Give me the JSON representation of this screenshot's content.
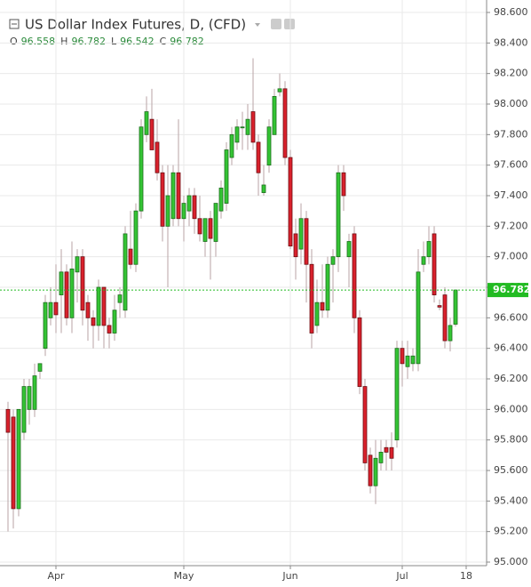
{
  "chart_data": {
    "type": "candlestick",
    "title": "US Dollar Index Futures, D, (CFD)",
    "ohlc_labels": [
      "O",
      "H",
      "L",
      "C"
    ],
    "ohlc_values": [
      96.558,
      96.782,
      96.542,
      96.782
    ],
    "last_price": 96.782,
    "up_color": "#34c434",
    "down_color": "#d9212c",
    "wick_color": "#b8a3a6",
    "last_price_color": "#22bb22",
    "grid": true,
    "ylim": [
      95.0,
      98.6
    ],
    "yticks": [
      {
        "value": 95.0,
        "label": "95.000"
      },
      {
        "value": 95.2,
        "label": "95.200"
      },
      {
        "value": 95.4,
        "label": "95.400"
      },
      {
        "value": 95.6,
        "label": "95.600"
      },
      {
        "value": 95.8,
        "label": "95.800"
      },
      {
        "value": 96.0,
        "label": "96.000"
      },
      {
        "value": 96.2,
        "label": "96.200"
      },
      {
        "value": 96.4,
        "label": "96.400"
      },
      {
        "value": 96.6,
        "label": "96.600"
      },
      {
        "value": 96.8,
        "label": "96.800"
      },
      {
        "value": 97.0,
        "label": "97.000"
      },
      {
        "value": 97.2,
        "label": "97.200"
      },
      {
        "value": 97.4,
        "label": "97.400"
      },
      {
        "value": 97.6,
        "label": "97.600"
      },
      {
        "value": 97.8,
        "label": "97.800"
      },
      {
        "value": 98.0,
        "label": "98.000"
      },
      {
        "value": 98.2,
        "label": "98.200"
      },
      {
        "value": 98.4,
        "label": "98.400"
      },
      {
        "value": 98.6,
        "label": "98.600"
      }
    ],
    "categories": [
      null,
      null,
      null,
      null,
      null,
      null,
      null,
      null,
      null,
      "Apr",
      null,
      null,
      null,
      null,
      null,
      null,
      null,
      null,
      null,
      null,
      null,
      null,
      null,
      null,
      null,
      null,
      null,
      null,
      null,
      null,
      null,
      null,
      null,
      "May",
      null,
      null,
      null,
      null,
      null,
      null,
      null,
      null,
      null,
      null,
      null,
      null,
      null,
      null,
      null,
      null,
      null,
      null,
      null,
      "Jun",
      null,
      null,
      null,
      null,
      null,
      null,
      null,
      null,
      null,
      null,
      null,
      null,
      null,
      null,
      null,
      null,
      null,
      null,
      null,
      null,
      "Jul",
      null,
      null,
      null,
      null,
      null,
      null,
      null,
      null,
      null,
      null,
      null,
      "18"
    ],
    "open": [
      96.0,
      95.95,
      95.35,
      95.85,
      96.0,
      96.0,
      96.25,
      96.4,
      96.6,
      96.7,
      96.75,
      96.9,
      96.6,
      96.9,
      97.0,
      96.7,
      96.6,
      96.55,
      96.8,
      96.55,
      96.5,
      96.7,
      96.65,
      97.05,
      96.95,
      97.3,
      97.8,
      97.9,
      97.75,
      97.55,
      97.2,
      97.25,
      97.55,
      97.25,
      97.3,
      97.4,
      97.25,
      97.1,
      97.25,
      97.1,
      97.3,
      97.35,
      97.65,
      97.75,
      97.85,
      97.8,
      97.95,
      97.75,
      97.42,
      97.6,
      97.8,
      98.08,
      98.1,
      97.65,
      97.15,
      97.05,
      97.25,
      96.95,
      96.55,
      96.7,
      96.65,
      96.95,
      97.0,
      97.55,
      97.0,
      97.15,
      96.6,
      96.15,
      95.7,
      95.5,
      95.65,
      95.75,
      95.75,
      95.8,
      96.4,
      96.28,
      96.3,
      96.3,
      96.95,
      97.0,
      97.15,
      96.68,
      96.75,
      96.45,
      96.558,
      null,
      null
    ],
    "high": [
      96.05,
      96.0,
      96.0,
      96.2,
      96.2,
      96.3,
      96.3,
      96.75,
      96.8,
      96.95,
      97.05,
      96.95,
      97.1,
      97.05,
      97.05,
      96.75,
      96.65,
      96.85,
      96.8,
      96.6,
      96.75,
      96.8,
      97.2,
      97.3,
      97.35,
      97.9,
      98.05,
      98.1,
      97.9,
      97.6,
      97.6,
      97.6,
      97.9,
      97.4,
      97.45,
      97.45,
      97.4,
      97.25,
      97.3,
      97.35,
      97.5,
      97.75,
      97.85,
      97.9,
      97.95,
      98.0,
      98.3,
      97.8,
      97.6,
      97.9,
      98.1,
      98.2,
      98.15,
      97.7,
      97.25,
      97.35,
      97.3,
      97.05,
      96.85,
      96.95,
      97.0,
      97.05,
      97.6,
      97.6,
      97.15,
      97.2,
      96.65,
      96.2,
      95.75,
      95.8,
      95.8,
      95.8,
      95.85,
      96.45,
      96.45,
      96.45,
      96.4,
      97.05,
      97.1,
      97.2,
      97.2,
      96.72,
      96.8,
      96.6,
      96.782,
      null,
      null
    ],
    "low": [
      95.2,
      95.22,
      95.3,
      95.8,
      95.9,
      95.95,
      96.2,
      96.35,
      96.55,
      96.5,
      96.5,
      96.55,
      96.5,
      96.7,
      96.55,
      96.45,
      96.4,
      96.45,
      96.4,
      96.4,
      96.45,
      96.6,
      96.6,
      96.92,
      96.9,
      97.25,
      97.75,
      97.7,
      97.5,
      97.1,
      96.8,
      97.2,
      97.2,
      97.1,
      97.2,
      97.15,
      97.1,
      97.0,
      96.85,
      97.0,
      97.25,
      97.3,
      97.6,
      97.7,
      97.7,
      97.7,
      97.7,
      97.4,
      97.4,
      97.55,
      97.8,
      98.05,
      97.6,
      97.05,
      96.85,
      96.95,
      96.7,
      96.4,
      96.5,
      96.6,
      96.6,
      96.7,
      96.9,
      97.3,
      96.8,
      96.5,
      96.1,
      95.6,
      95.45,
      95.38,
      95.6,
      95.6,
      95.6,
      95.75,
      96.15,
      96.2,
      96.25,
      96.25,
      96.9,
      96.95,
      96.7,
      96.65,
      96.4,
      96.38,
      96.542,
      null,
      null
    ],
    "close": [
      95.85,
      95.35,
      96.0,
      96.15,
      96.15,
      96.22,
      96.3,
      96.7,
      96.7,
      96.62,
      96.9,
      96.6,
      96.92,
      97.0,
      96.65,
      96.6,
      96.55,
      96.8,
      96.55,
      96.5,
      96.65,
      96.75,
      97.15,
      96.95,
      97.3,
      97.85,
      97.95,
      97.7,
      97.55,
      97.2,
      97.4,
      97.55,
      97.25,
      97.35,
      97.4,
      97.25,
      97.15,
      97.25,
      97.12,
      97.35,
      97.45,
      97.7,
      97.8,
      97.85,
      97.85,
      97.9,
      97.75,
      97.55,
      97.47,
      97.85,
      98.05,
      98.1,
      97.65,
      97.07,
      97.0,
      97.25,
      96.95,
      96.5,
      96.7,
      96.65,
      96.95,
      97.0,
      97.55,
      97.4,
      97.1,
      96.6,
      96.15,
      95.65,
      95.5,
      95.68,
      95.72,
      95.72,
      95.68,
      96.4,
      96.3,
      96.35,
      96.35,
      96.9,
      97.0,
      97.1,
      96.75,
      96.67,
      96.45,
      96.55,
      96.782,
      null,
      null
    ]
  }
}
